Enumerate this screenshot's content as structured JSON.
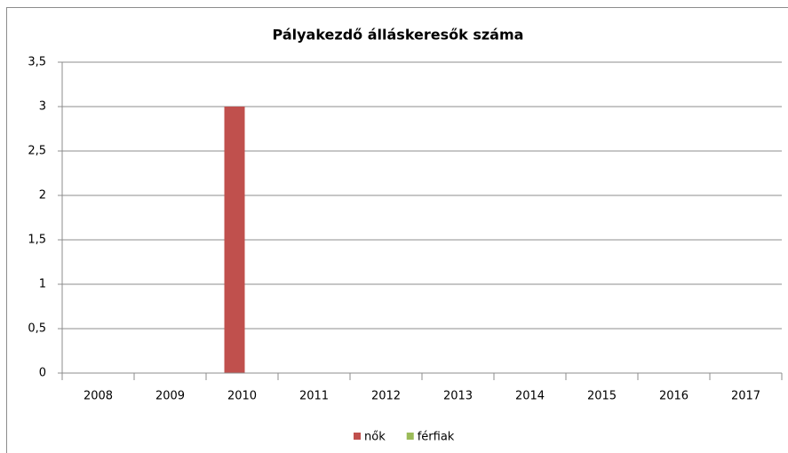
{
  "chart_data": {
    "type": "bar",
    "title": "Pályakezdő álláskeresők száma",
    "categories": [
      "2008",
      "2009",
      "2010",
      "2011",
      "2012",
      "2013",
      "2014",
      "2015",
      "2016",
      "2017"
    ],
    "series": [
      {
        "name": "nők",
        "color": "#c0504d",
        "values": [
          0,
          0,
          3,
          0,
          0,
          0,
          0,
          0,
          0,
          0
        ]
      },
      {
        "name": "férfiak",
        "color": "#9bbb59",
        "values": [
          0,
          0,
          0,
          0,
          0,
          0,
          0,
          0,
          0,
          0
        ]
      }
    ],
    "ylim": [
      0,
      3.5
    ],
    "yticks": [
      0,
      {
        "value": 0.5,
        "label": "0,5"
      },
      1,
      {
        "value": 1.5,
        "label": "1,5"
      },
      2,
      {
        "value": 2.5,
        "label": "2,5"
      },
      3,
      {
        "value": 3.5,
        "label": "3,5"
      }
    ],
    "grid": true,
    "legend": "bottom"
  }
}
